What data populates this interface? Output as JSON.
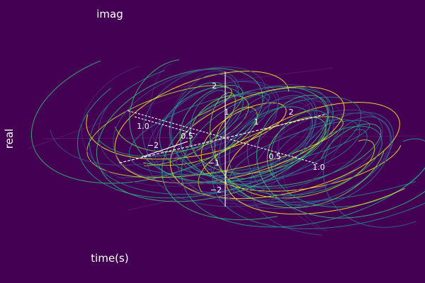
{
  "chart_data": {
    "type": "line",
    "projection": "3d",
    "background": "#440154",
    "text_color": "#ffffff",
    "colormap": "viridis",
    "xlabel": "time(s)",
    "ylabel": "real",
    "zlabel": "imag",
    "x_axis": {
      "range": [
        0,
        1
      ],
      "ticks": [
        "0.5",
        "1.0"
      ]
    },
    "y_axis": {
      "range": [
        -2.2,
        2.2
      ],
      "ticks": [
        "−2",
        "−1",
        "1",
        "2"
      ]
    },
    "z_axis": {
      "range": [
        -2.5,
        2.5
      ],
      "ticks": [
        "−2",
        "−1",
        "1",
        "2"
      ]
    },
    "left_ticks": [
      "1.0",
      "0.5"
    ],
    "grid": true,
    "legend": false,
    "series_count": 24,
    "series_colors": [
      "#482878",
      "#3e4989",
      "#31688e",
      "#26828e",
      "#1f9e89",
      "#35b779",
      "#6ece58",
      "#b5de2b",
      "#fde725"
    ]
  }
}
